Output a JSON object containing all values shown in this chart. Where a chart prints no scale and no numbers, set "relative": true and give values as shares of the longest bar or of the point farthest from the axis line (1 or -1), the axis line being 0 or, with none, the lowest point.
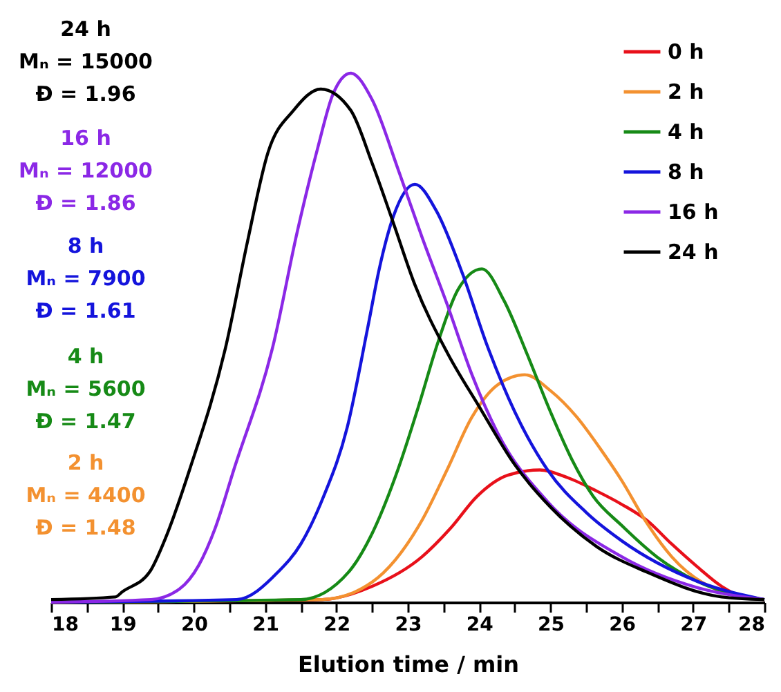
{
  "chart_data": {
    "type": "line",
    "relative": true,
    "xlabel": "Elution time / min",
    "xlim": [
      18,
      28
    ],
    "xticks": [
      18,
      {
        "value": 18.5,
        "label": null
      },
      19,
      {
        "value": 19.5,
        "label": null
      },
      20,
      {
        "value": 20.5,
        "label": null
      },
      21,
      {
        "value": 21.5,
        "label": null
      },
      22,
      {
        "value": 22.5,
        "label": null
      },
      23,
      {
        "value": 23.5,
        "label": null
      },
      24,
      {
        "value": 24.5,
        "label": null
      },
      25,
      {
        "value": 25.5,
        "label": null
      },
      26,
      {
        "value": 26.5,
        "label": null
      },
      27,
      {
        "value": 27.5,
        "label": null
      },
      28
    ],
    "grid": false,
    "legend": "top right",
    "tick_labels": "x",
    "series": [
      {
        "name": "0 h",
        "color": "#e8101a",
        "x": [
          18,
          21.8,
          22.5,
          23.2,
          23.6,
          23.97,
          24.4,
          24.85,
          25.25,
          25.65,
          26.0,
          26.35,
          26.7,
          27.05,
          27.4,
          27.7,
          28
        ],
        "values": [
          0,
          0.005,
          0.03,
          0.086,
          0.14,
          0.2,
          0.24,
          0.25,
          0.235,
          0.21,
          0.185,
          0.155,
          0.11,
          0.068,
          0.03,
          0.01,
          0.005
        ]
      },
      {
        "name": "2 h",
        "color": "#f39130",
        "x": [
          18,
          21.8,
          22.5,
          23.2,
          23.55,
          23.9,
          24.25,
          24.64,
          25.0,
          25.37,
          25.7,
          26.0,
          26.35,
          26.7,
          27.4,
          28
        ],
        "values": [
          0,
          0.005,
          0.038,
          0.155,
          0.25,
          0.35,
          0.41,
          0.43,
          0.4,
          0.35,
          0.29,
          0.23,
          0.15,
          0.086,
          0.02,
          0.005
        ]
      },
      {
        "name": "4 h",
        "color": "#168a16",
        "x": [
          18,
          21.5,
          22.17,
          22.5,
          22.86,
          23.15,
          23.42,
          23.7,
          24.04,
          24.35,
          24.67,
          25.0,
          25.3,
          25.6,
          26.0,
          26.5,
          27.05,
          28
        ],
        "values": [
          0,
          0.005,
          0.057,
          0.13,
          0.25,
          0.37,
          0.49,
          0.59,
          0.63,
          0.57,
          0.47,
          0.36,
          0.27,
          0.2,
          0.145,
          0.085,
          0.04,
          0.005
        ]
      },
      {
        "name": "8 h",
        "color": "#1414dc",
        "x": [
          18,
          20.6,
          21.18,
          21.5,
          21.82,
          22.15,
          22.44,
          22.6,
          22.8,
          23.1,
          23.4,
          23.77,
          24.1,
          24.5,
          24.96,
          25.5,
          26.0,
          27.05,
          28
        ],
        "values": [
          0,
          0.005,
          0.057,
          0.11,
          0.2,
          0.33,
          0.52,
          0.63,
          0.73,
          0.79,
          0.74,
          0.62,
          0.49,
          0.36,
          0.25,
          0.17,
          0.116,
          0.04,
          0.005
        ]
      },
      {
        "name": "16 h",
        "color": "#8b28e6",
        "x": [
          18,
          19.4,
          19.8,
          20.07,
          20.3,
          20.56,
          21.12,
          21.45,
          21.74,
          21.95,
          22.2,
          22.5,
          22.86,
          23.2,
          23.56,
          23.9,
          24.26,
          24.96,
          26.0,
          27.05,
          28
        ],
        "values": [
          0,
          0.005,
          0.025,
          0.07,
          0.14,
          0.25,
          0.49,
          0.7,
          0.86,
          0.96,
          1.0,
          0.95,
          0.82,
          0.69,
          0.56,
          0.43,
          0.32,
          0.19,
          0.086,
          0.028,
          0.005
        ]
      },
      {
        "name": "24 h",
        "color": "#000000",
        "x": [
          18,
          18.9,
          19.0,
          19.38,
          19.6,
          19.94,
          20.46,
          20.75,
          21.04,
          21.4,
          21.78,
          22.2,
          22.5,
          22.79,
          23.1,
          23.56,
          24.0,
          24.5,
          25.0,
          25.65,
          26.35,
          27.4,
          28
        ],
        "values": [
          0.005,
          0.01,
          0.02,
          0.057,
          0.12,
          0.25,
          0.49,
          0.68,
          0.85,
          0.93,
          0.97,
          0.93,
          0.83,
          0.72,
          0.6,
          0.47,
          0.37,
          0.26,
          0.18,
          0.105,
          0.057,
          0.01,
          0.005
        ]
      }
    ],
    "annotations": [
      "24 h",
      "Mₙ = 15000",
      "Đ = 1.96",
      "16 h",
      "Mₙ = 12000",
      "Đ = 1.86",
      "8 h",
      "Mₙ = 7900",
      "Đ = 1.61",
      "4 h",
      "Mₙ = 5600",
      "Đ = 1.47",
      "2 h",
      "Mₙ = 4400",
      "Đ = 1.48"
    ]
  }
}
